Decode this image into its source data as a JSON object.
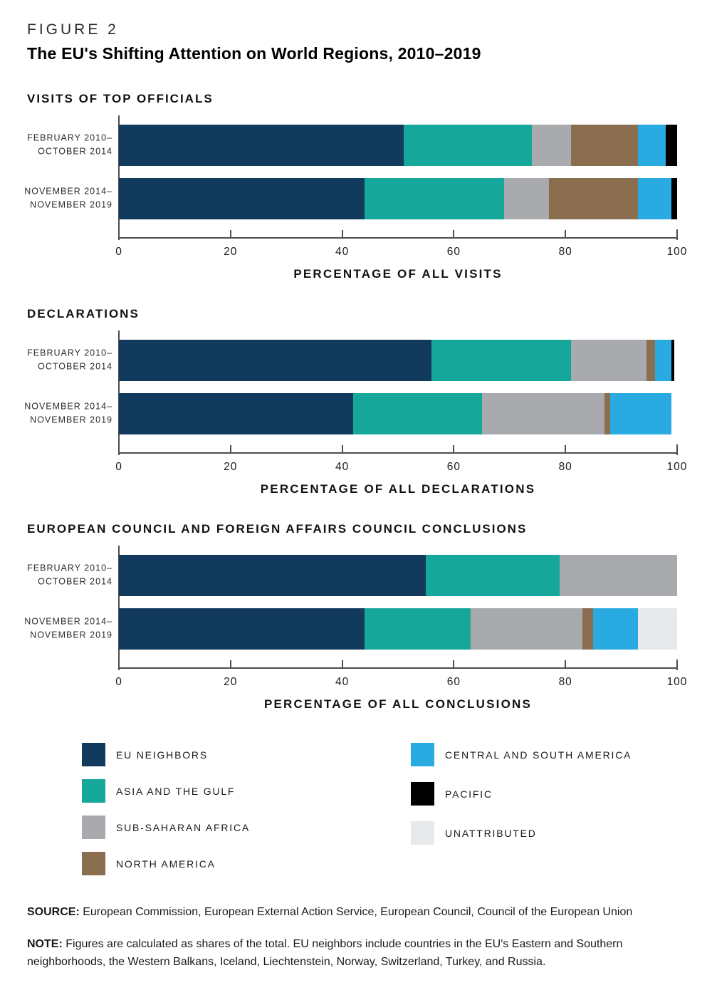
{
  "figure_label": "FIGURE 2",
  "title": "The EU's Shifting Attention on World Regions, 2010–2019",
  "chart_data": [
    {
      "type": "bar",
      "orientation": "horizontal",
      "stacked": true,
      "title": "VISITS OF TOP OFFICIALS",
      "xlabel": "PERCENTAGE OF ALL VISITS",
      "xlim": [
        0,
        100
      ],
      "xticks": [
        0,
        20,
        40,
        60,
        80,
        100
      ],
      "categories": [
        "FEBRUARY 2010–\nOCTOBER 2014",
        "NOVEMBER 2014–\nNOVEMBER 2019"
      ],
      "series": [
        {
          "name": "EU NEIGHBORS",
          "color": "#123A5C",
          "values": [
            51,
            44
          ]
        },
        {
          "name": "ASIA AND THE GULF",
          "color": "#16A79B",
          "values": [
            23,
            25
          ]
        },
        {
          "name": "SUB-SAHARAN AFRICA",
          "color": "#A8AAAD",
          "values": [
            7,
            8
          ]
        },
        {
          "name": "NORTH AMERICA",
          "color": "#8B6D50",
          "values": [
            12,
            16
          ]
        },
        {
          "name": "CENTRAL AND SOUTH AMERICA",
          "color": "#29ABE2",
          "values": [
            5,
            6
          ]
        },
        {
          "name": "PACIFIC",
          "color": "#000000",
          "values": [
            2,
            1
          ]
        },
        {
          "name": "UNATTRIBUTED",
          "color": "#E8E9EA",
          "values": [
            0,
            0
          ]
        }
      ]
    },
    {
      "type": "bar",
      "orientation": "horizontal",
      "stacked": true,
      "title": "DECLARATIONS",
      "xlabel": "PERCENTAGE OF ALL DECLARATIONS",
      "xlim": [
        0,
        100
      ],
      "xticks": [
        0,
        20,
        40,
        60,
        80,
        100
      ],
      "categories": [
        "FEBRUARY 2010–\nOCTOBER 2014",
        "NOVEMBER 2014–\nNOVEMBER 2019"
      ],
      "series": [
        {
          "name": "EU NEIGHBORS",
          "color": "#123A5C",
          "values": [
            56,
            42
          ]
        },
        {
          "name": "ASIA AND THE GULF",
          "color": "#16A79B",
          "values": [
            25,
            23
          ]
        },
        {
          "name": "SUB-SAHARAN AFRICA",
          "color": "#A8AAAD",
          "values": [
            13.5,
            22
          ]
        },
        {
          "name": "NORTH AMERICA",
          "color": "#8B6D50",
          "values": [
            1.5,
            1
          ]
        },
        {
          "name": "CENTRAL AND SOUTH AMERICA",
          "color": "#29ABE2",
          "values": [
            3,
            11
          ]
        },
        {
          "name": "PACIFIC",
          "color": "#000000",
          "values": [
            0.5,
            0
          ]
        },
        {
          "name": "UNATTRIBUTED",
          "color": "#E8E9EA",
          "values": [
            0,
            0
          ]
        }
      ]
    },
    {
      "type": "bar",
      "orientation": "horizontal",
      "stacked": true,
      "title": "EUROPEAN COUNCIL AND FOREIGN AFFAIRS COUNCIL CONCLUSIONS",
      "xlabel": "PERCENTAGE OF ALL CONCLUSIONS",
      "xlim": [
        0,
        100
      ],
      "xticks": [
        0,
        20,
        40,
        60,
        80,
        100
      ],
      "categories": [
        "FEBRUARY 2010–\nOCTOBER 2014",
        "NOVEMBER 2014–\nNOVEMBER 2019"
      ],
      "series": [
        {
          "name": "EU NEIGHBORS",
          "color": "#123A5C",
          "values": [
            55,
            44
          ]
        },
        {
          "name": "ASIA AND THE GULF",
          "color": "#16A79B",
          "values": [
            24,
            19
          ]
        },
        {
          "name": "SUB-SAHARAN AFRICA",
          "color": "#A8AAAD",
          "values": [
            21,
            20
          ]
        },
        {
          "name": "NORTH AMERICA",
          "color": "#8B6D50",
          "values": [
            0,
            2
          ]
        },
        {
          "name": "CENTRAL AND SOUTH AMERICA",
          "color": "#29ABE2",
          "values": [
            0,
            8
          ]
        },
        {
          "name": "PACIFIC",
          "color": "#000000",
          "values": [
            0,
            0
          ]
        },
        {
          "name": "UNATTRIBUTED",
          "color": "#E8E9EA",
          "values": [
            0,
            7
          ]
        }
      ]
    }
  ],
  "legend": {
    "items": [
      {
        "label": "EU NEIGHBORS",
        "color": "#123A5C"
      },
      {
        "label": "ASIA AND THE GULF",
        "color": "#16A79B"
      },
      {
        "label": "SUB-SAHARAN AFRICA",
        "color": "#A8AAAD"
      },
      {
        "label": "NORTH AMERICA",
        "color": "#8B6D50"
      },
      {
        "label": "CENTRAL AND SOUTH AMERICA",
        "color": "#29ABE2"
      },
      {
        "label": "PACIFIC",
        "color": "#000000"
      },
      {
        "label": "UNATTRIBUTED",
        "color": "#E8E9EA"
      }
    ]
  },
  "source_label": "SOURCE:",
  "source_text": "European Commission, European External Action Service, European Council, Council of the European Union",
  "note_label": "NOTE:",
  "note_text": "Figures are calculated as shares of the total. EU neighbors include countries in the EU's Eastern and Southern neighborhoods, the Western Balkans, Iceland, Liechtenstein, Norway, Switzerland, Turkey, and Russia."
}
